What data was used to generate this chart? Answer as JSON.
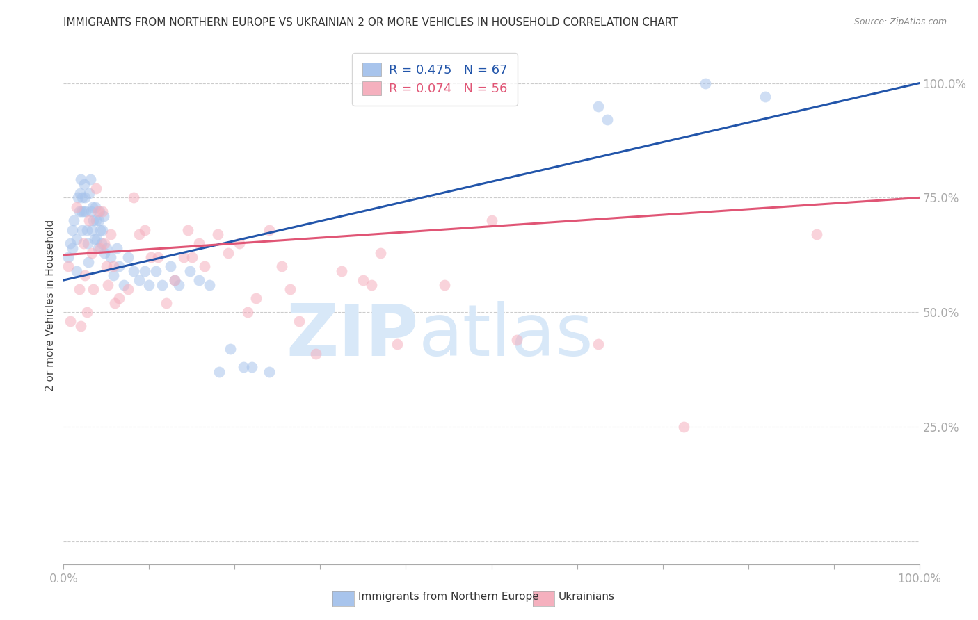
{
  "title": "IMMIGRANTS FROM NORTHERN EUROPE VS UKRAINIAN 2 OR MORE VEHICLES IN HOUSEHOLD CORRELATION CHART",
  "source": "Source: ZipAtlas.com",
  "ylabel": "2 or more Vehicles in Household",
  "series1_label": "Immigrants from Northern Europe",
  "series2_label": "Ukrainians",
  "series1_R": "0.475",
  "series1_N": "67",
  "series2_R": "0.074",
  "series2_N": "56",
  "series1_color": "#a8c4ec",
  "series2_color": "#f5b0be",
  "trend1_color": "#2255aa",
  "trend2_color": "#e05575",
  "watermark_zip": "ZIP",
  "watermark_atlas": "atlas",
  "watermark_color": "#d8e8f8",
  "ytick_color": "#5577cc",
  "xtick_color": "#5577cc",
  "title_color": "#333333",
  "grid_color": "#cccccc",
  "background_color": "#ffffff",
  "xlim": [
    0.0,
    1.0
  ],
  "ylim": [
    -0.05,
    1.08
  ],
  "yticks": [
    0.0,
    0.25,
    0.5,
    0.75,
    1.0
  ],
  "ytick_labels": [
    "",
    "25.0%",
    "50.0%",
    "75.0%",
    "100.0%"
  ],
  "blue_x": [
    0.005,
    0.008,
    0.01,
    0.01,
    0.012,
    0.015,
    0.015,
    0.017,
    0.018,
    0.019,
    0.02,
    0.021,
    0.022,
    0.022,
    0.023,
    0.024,
    0.025,
    0.026,
    0.027,
    0.028,
    0.029,
    0.03,
    0.031,
    0.032,
    0.033,
    0.034,
    0.035,
    0.036,
    0.037,
    0.038,
    0.039,
    0.04,
    0.041,
    0.042,
    0.043,
    0.044,
    0.045,
    0.047,
    0.048,
    0.05,
    0.055,
    0.058,
    0.062,
    0.065,
    0.07,
    0.075,
    0.082,
    0.088,
    0.095,
    0.1,
    0.108,
    0.115,
    0.125,
    0.13,
    0.135,
    0.148,
    0.158,
    0.17,
    0.182,
    0.195,
    0.21,
    0.22,
    0.24,
    0.625,
    0.635,
    0.75,
    0.82
  ],
  "blue_y": [
    0.62,
    0.65,
    0.68,
    0.64,
    0.7,
    0.66,
    0.59,
    0.75,
    0.72,
    0.76,
    0.79,
    0.72,
    0.75,
    0.68,
    0.72,
    0.78,
    0.75,
    0.72,
    0.68,
    0.65,
    0.61,
    0.76,
    0.79,
    0.72,
    0.68,
    0.73,
    0.7,
    0.66,
    0.73,
    0.7,
    0.66,
    0.64,
    0.7,
    0.72,
    0.68,
    0.65,
    0.68,
    0.71,
    0.63,
    0.64,
    0.62,
    0.58,
    0.64,
    0.6,
    0.56,
    0.62,
    0.59,
    0.57,
    0.59,
    0.56,
    0.59,
    0.56,
    0.6,
    0.57,
    0.56,
    0.59,
    0.57,
    0.56,
    0.37,
    0.42,
    0.38,
    0.38,
    0.37,
    0.95,
    0.92,
    1.0,
    0.97
  ],
  "pink_x": [
    0.005,
    0.008,
    0.015,
    0.018,
    0.02,
    0.023,
    0.025,
    0.027,
    0.03,
    0.033,
    0.035,
    0.038,
    0.04,
    0.043,
    0.045,
    0.048,
    0.05,
    0.052,
    0.055,
    0.058,
    0.06,
    0.065,
    0.075,
    0.082,
    0.088,
    0.095,
    0.102,
    0.11,
    0.12,
    0.13,
    0.14,
    0.145,
    0.15,
    0.158,
    0.165,
    0.18,
    0.192,
    0.205,
    0.215,
    0.225,
    0.24,
    0.255,
    0.265,
    0.275,
    0.295,
    0.325,
    0.35,
    0.36,
    0.37,
    0.39,
    0.445,
    0.5,
    0.53,
    0.625,
    0.725,
    0.88
  ],
  "pink_y": [
    0.6,
    0.48,
    0.73,
    0.55,
    0.47,
    0.65,
    0.58,
    0.5,
    0.7,
    0.63,
    0.55,
    0.77,
    0.72,
    0.64,
    0.72,
    0.65,
    0.6,
    0.56,
    0.67,
    0.6,
    0.52,
    0.53,
    0.55,
    0.75,
    0.67,
    0.68,
    0.62,
    0.62,
    0.52,
    0.57,
    0.62,
    0.68,
    0.62,
    0.65,
    0.6,
    0.67,
    0.63,
    0.65,
    0.5,
    0.53,
    0.68,
    0.6,
    0.55,
    0.48,
    0.41,
    0.59,
    0.57,
    0.56,
    0.63,
    0.43,
    0.56,
    0.7,
    0.44,
    0.43,
    0.25,
    0.67
  ],
  "trend1_x0": 0.0,
  "trend1_y0": 0.57,
  "trend1_x1": 1.0,
  "trend1_y1": 1.0,
  "trend2_x0": 0.0,
  "trend2_y0": 0.625,
  "trend2_x1": 1.0,
  "trend2_y1": 0.75
}
